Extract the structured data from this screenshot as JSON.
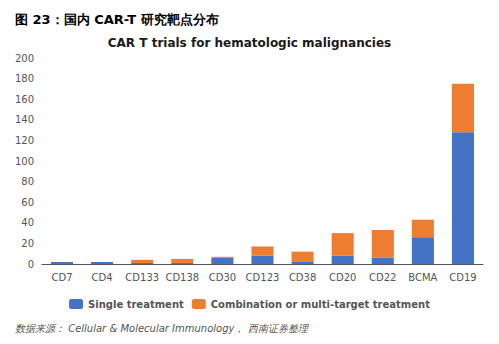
{
  "chart_data": {
    "type": "bar",
    "title": "图 23：国内 CAR-T 研究靶点分布",
    "subtitle": "CAR T trials for hematologic malignancies",
    "annotations": [
      "数据来源： Cellular & Molecular Immunology， 西南证券整理"
    ],
    "categories": [
      "CD7",
      "CD4",
      "CD133",
      "CD138",
      "CD30",
      "CD123",
      "CD38",
      "CD20",
      "CD22",
      "BCMA",
      "CD19"
    ],
    "series": [
      {
        "name": "Single treatment",
        "color": "#4472C4",
        "values": [
          2,
          2,
          1,
          1,
          6,
          8,
          2,
          8,
          6,
          26,
          128
        ]
      },
      {
        "name": "Combination or multi-target treatment",
        "color": "#ED7D31",
        "values": [
          0,
          0,
          3,
          4,
          1,
          9,
          10,
          22,
          27,
          17,
          47
        ]
      }
    ],
    "stacked": true,
    "ylim": [
      0,
      200
    ],
    "yticks": [
      0,
      20,
      40,
      60,
      80,
      100,
      120,
      140,
      160,
      180,
      200
    ],
    "grid": false,
    "legend": "bottom"
  }
}
